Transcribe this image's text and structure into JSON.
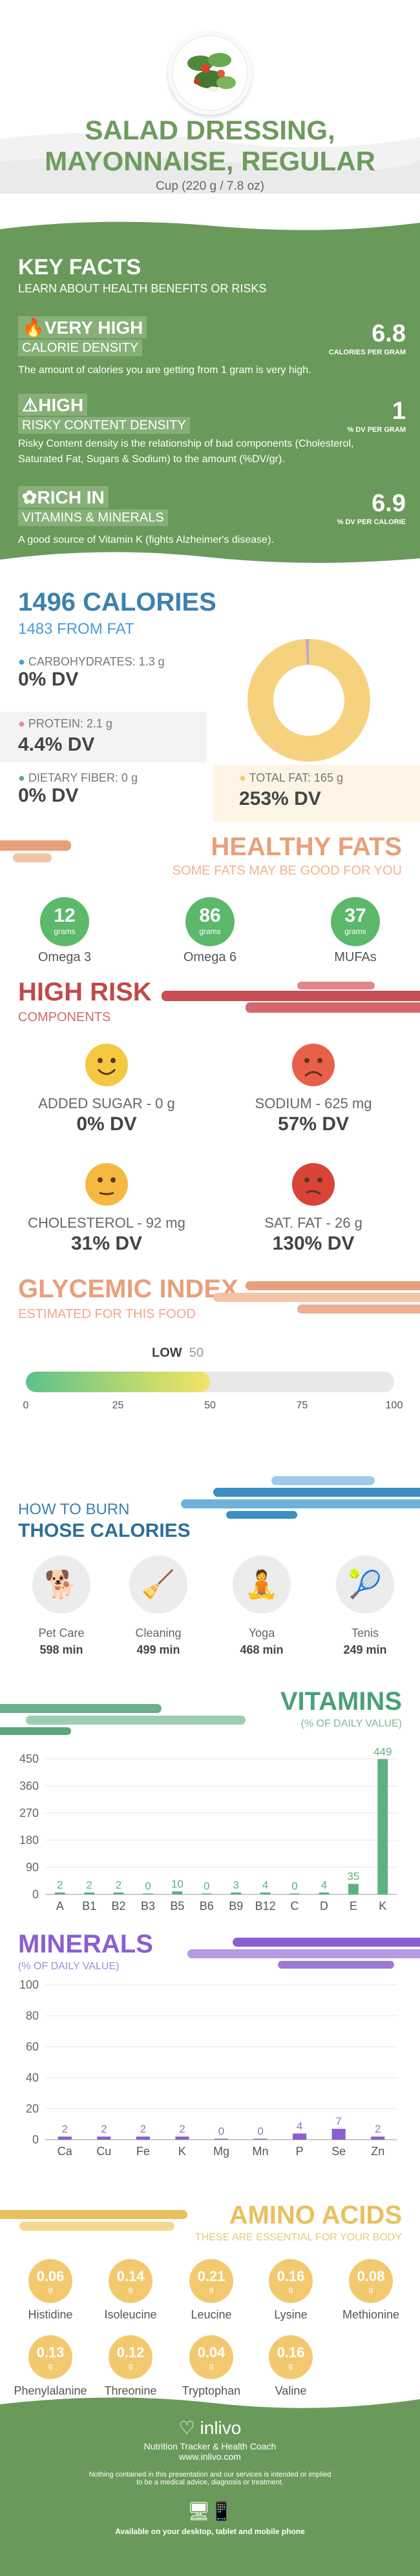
{
  "header": {
    "title_line1": "SALAD DRESSING,",
    "title_line2": "MAYONNAISE, REGULAR",
    "serving": "Cup (220 g / 7.8 oz)"
  },
  "key_facts": {
    "title": "KEY FACTS",
    "subtitle": "LEARN ABOUT HEALTH BENEFITS OR RISKS",
    "items": [
      {
        "tag1": "VERY HIGH",
        "tag2": "CALORIE DENSITY",
        "value": "6.8",
        "unit": "CALORIES PER GRAM",
        "desc": "The amount of calories you are getting from 1 gram is very high."
      },
      {
        "tag1": "HIGH",
        "tag2": "RISKY CONTENT DENSITY",
        "value": "1",
        "unit": "% DV PER GRAM",
        "desc": "Risky Content density is the relationship of bad components (Cholesterol, Saturated Fat, Sugars & Sodium) to the amount (%DV/gr)."
      },
      {
        "tag1": "RICH  IN",
        "tag2": "VITAMINS & MINERALS",
        "value": "6.9",
        "unit": "% DV PER CALORIE",
        "desc": "A good source of Vitamin K (fights Alzheimer's disease)."
      }
    ]
  },
  "calories": {
    "title": "1496 CALORIES",
    "from_fat": "1483 FROM FAT",
    "carbs_label": "CARBOHYDRATES: 1.3 g",
    "carbs_dv": "0% DV",
    "protein_label": "PROTEIN: 2.1 g",
    "protein_dv": "4.4% DV",
    "fiber_label": "DIETARY FIBER: 0 g",
    "fiber_dv": "0% DV",
    "fat_label": "TOTAL FAT: 165 g",
    "fat_dv": "253% DV",
    "donut": {
      "fat_fraction": 0.99,
      "protein_fraction": 0.006,
      "carbs_fraction": 0.004
    }
  },
  "healthy_fats": {
    "title": "HEALTHY FATS",
    "subtitle": "SOME FATS MAY BE GOOD FOR YOU",
    "items": [
      {
        "value": "12",
        "unit": "grams",
        "label": "Omega 3"
      },
      {
        "value": "86",
        "unit": "grams",
        "label": "Omega 6"
      },
      {
        "value": "37",
        "unit": "grams",
        "label": "MUFAs"
      }
    ]
  },
  "high_risk": {
    "title": "HIGH RISK",
    "subtitle": "COMPONENTS",
    "items": [
      {
        "label": "ADDED SUGAR - 0 g",
        "dv": "0% DV",
        "face": "happy",
        "color": "#f5c842"
      },
      {
        "label": "SODIUM - 625 mg",
        "dv": "57% DV",
        "face": "sad",
        "color": "#e9604a"
      },
      {
        "label": "CHOLESTEROL - 92 mg",
        "dv": "31% DV",
        "face": "neutral",
        "color": "#f5b942"
      },
      {
        "label": "SAT. FAT - 26 g",
        "dv": "130% DV",
        "face": "dizzy",
        "color": "#d94436"
      }
    ]
  },
  "glycemic": {
    "title": "GLYCEMIC INDEX",
    "subtitle": "ESTIMATED FOR THIS FOOD",
    "level": "LOW",
    "value": 50,
    "ticks": [
      "0",
      "25",
      "50",
      "75",
      "100"
    ]
  },
  "burn": {
    "title1": "HOW TO BURN",
    "title2": "THOSE CALORIES",
    "items": [
      {
        "label": "Pet Care",
        "minutes": "598 min",
        "icon": "dog-walking-icon"
      },
      {
        "label": "Cleaning",
        "minutes": "499 min",
        "icon": "cleaning-icon"
      },
      {
        "label": "Yoga",
        "minutes": "468 min",
        "icon": "yoga-icon"
      },
      {
        "label": "Tenis",
        "minutes": "249 min",
        "icon": "tennis-icon"
      }
    ]
  },
  "vitamins": {
    "title": "VITAMINS",
    "subtitle": "(% OF DAILY VALUE)",
    "chart_data": {
      "type": "bar",
      "categories": [
        "A",
        "B1",
        "B2",
        "B3",
        "B5",
        "B6",
        "B9",
        "B12",
        "C",
        "D",
        "E",
        "K"
      ],
      "values": [
        2,
        2,
        2,
        0,
        10,
        0,
        3,
        4,
        0,
        4,
        35,
        449
      ],
      "labels": [
        "2",
        "2",
        "2",
        "0",
        "10",
        "0",
        "3",
        "4",
        "0",
        "4",
        "35",
        "449"
      ],
      "yticks": [
        "450",
        "360",
        "270",
        "180",
        "90",
        "0"
      ],
      "ylim": [
        0,
        450
      ]
    }
  },
  "minerals": {
    "title": "MINERALS",
    "subtitle": "(% OF DAILY VALUE)",
    "chart_data": {
      "type": "bar",
      "categories": [
        "Ca",
        "Cu",
        "Fe",
        "K",
        "Mg",
        "Mn",
        "P",
        "Se",
        "Zn"
      ],
      "values": [
        2,
        2,
        2,
        2,
        0,
        0,
        4,
        7,
        2
      ],
      "labels": [
        "2",
        "2",
        "2",
        "2",
        "0",
        "0",
        "4",
        "7",
        "2"
      ],
      "yticks": [
        "100",
        "80",
        "60",
        "40",
        "20",
        "0"
      ],
      "ylim": [
        0,
        100
      ]
    }
  },
  "amino": {
    "title": "AMINO ACIDS",
    "subtitle": "THESE ARE ESSENTIAL FOR YOUR BODY",
    "items": [
      {
        "value": "0.06",
        "unit": "g",
        "label": "Histidine"
      },
      {
        "value": "0.14",
        "unit": "g",
        "label": "Isoleucine"
      },
      {
        "value": "0.21",
        "unit": "g",
        "label": "Leucine"
      },
      {
        "value": "0.16",
        "unit": "g",
        "label": "Lysine"
      },
      {
        "value": "0.08",
        "unit": "g",
        "label": "Methionine"
      },
      {
        "value": "0.13",
        "unit": "g",
        "label": "Phenylalanine"
      },
      {
        "value": "0.12",
        "unit": "g",
        "label": "Threonine"
      },
      {
        "value": "0.04",
        "unit": "g",
        "label": "Tryptophan"
      },
      {
        "value": "0.16",
        "unit": "g",
        "label": "Valine"
      }
    ]
  },
  "footer": {
    "brand": "inlivo",
    "tagline": "Nutrition Tracker & Health Coach",
    "url": "www.inlivo.com",
    "disclaimer1": "Nothing contained in this presentation and our services is intended or implied",
    "disclaimer2": "to be a medical advice, diagnosis or treatment.",
    "available": "Available on your desktop, tablet and mobile phone"
  }
}
